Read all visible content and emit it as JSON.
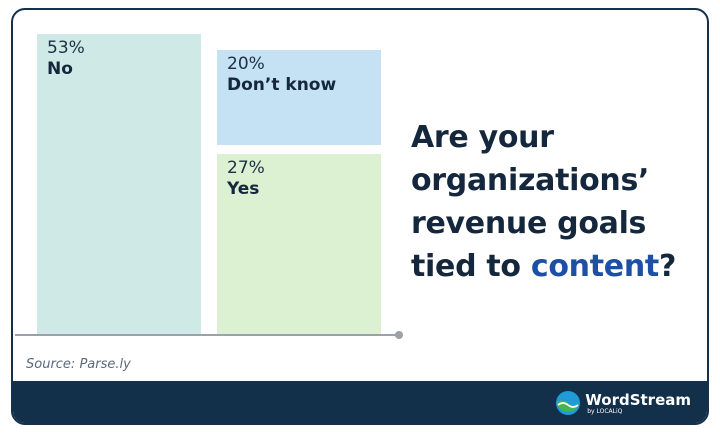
{
  "chart_data": {
    "type": "treemap",
    "title_parts": [
      {
        "text": "Are your organizations’ revenue goals tied to ",
        "highlight": false
      },
      {
        "text": "content",
        "highlight": true
      },
      {
        "text": "?",
        "highlight": false
      }
    ],
    "segments": [
      {
        "label": "No",
        "value": 53,
        "value_text": "53%",
        "color": "#cfeae6"
      },
      {
        "label": "Don’t know",
        "value": 20,
        "value_text": "20%",
        "color": "#c4e2f3"
      },
      {
        "label": "Yes",
        "value": 27,
        "value_text": "27%",
        "color": "#dcf0d2"
      }
    ]
  },
  "source": "Source: Parse.ly",
  "brand": {
    "name": "WordStream",
    "byline": "by LOCALiQ",
    "colors": {
      "footer": "#123049",
      "accent": "#1d4fa3"
    }
  }
}
